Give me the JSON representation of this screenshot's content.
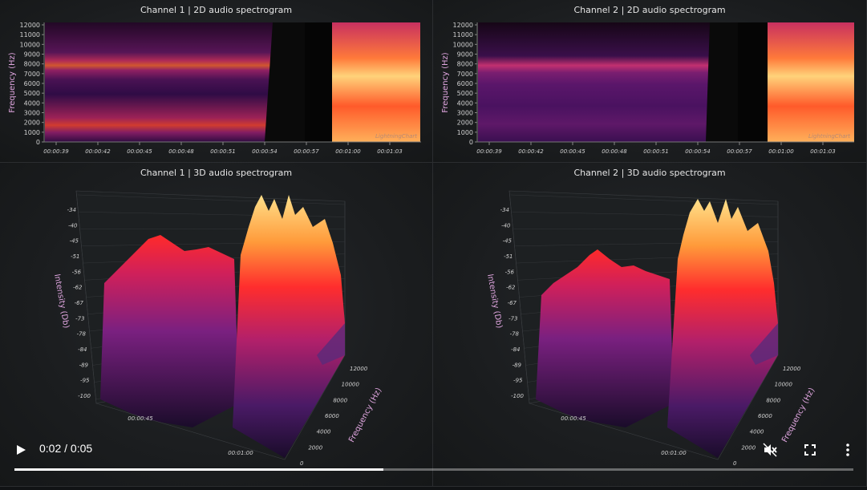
{
  "panels": {
    "ch1_2d": {
      "title": "Channel 1 | 2D audio spectrogram"
    },
    "ch2_2d": {
      "title": "Channel 2 | 2D audio spectrogram"
    },
    "ch1_3d": {
      "title": "Channel 1 | 3D audio spectrogram"
    },
    "ch2_3d": {
      "title": "Channel 2 | 3D audio spectrogram"
    }
  },
  "axes2d": {
    "ylabel": "Frequency (Hz)",
    "yticks": [
      "12000",
      "11000",
      "10000",
      "9000",
      "8000",
      "7000",
      "6000",
      "5000",
      "4000",
      "3000",
      "2000",
      "1000",
      "0"
    ],
    "xticks": [
      "00:00:39",
      "00:00:42",
      "00:00:45",
      "00:00:48",
      "00:00:51",
      "00:00:54",
      "00:00:57",
      "00:01:00",
      "00:01:03"
    ],
    "watermark": "LightningChart"
  },
  "axes3d": {
    "zlabel": "Intensity (Db)",
    "zticks": [
      "-34",
      "-40",
      "-45",
      "-51",
      "-56",
      "-62",
      "-67",
      "-73",
      "-78",
      "-84",
      "-89",
      "-95",
      "-100"
    ],
    "flabel": "Frequency (Hz)",
    "fticks": [
      "12000",
      "10000",
      "8000",
      "6000",
      "4000",
      "2000",
      "0"
    ],
    "tticks": [
      "00:00:45",
      "00:01:00"
    ]
  },
  "video": {
    "time": "0:02 / 0:05",
    "progress": 0.44
  },
  "chart_data": [
    {
      "type": "heatmap",
      "title": "Channel 1 | 2D audio spectrogram",
      "ylabel": "Frequency (Hz)",
      "ylim": [
        0,
        12000
      ]
    },
    {
      "type": "heatmap",
      "title": "Channel 2 | 2D audio spectrogram",
      "ylabel": "Frequency (Hz)",
      "ylim": [
        0,
        12000
      ]
    },
    {
      "type": "area",
      "title": "Channel 1 | 3D audio spectrogram",
      "ylabel": "Intensity (Db)",
      "ylim": [
        -100,
        -34
      ]
    },
    {
      "type": "area",
      "title": "Channel 2 | 3D audio spectrogram",
      "ylabel": "Intensity (Db)",
      "ylim": [
        -100,
        -34
      ]
    }
  ]
}
